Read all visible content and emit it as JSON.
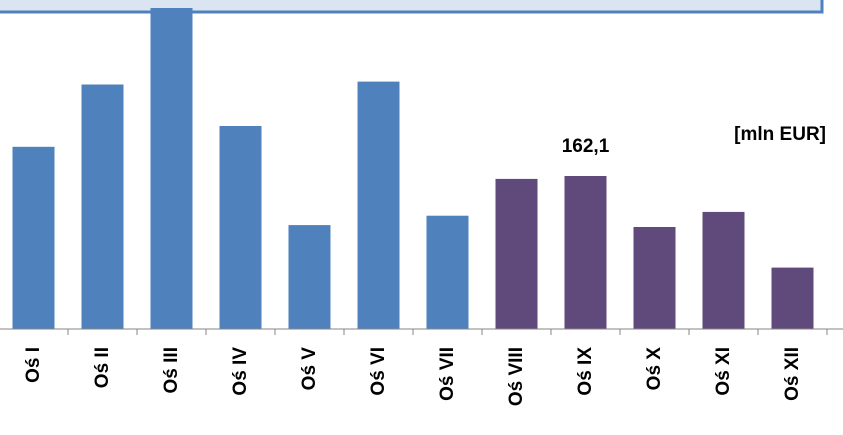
{
  "chart_data": {
    "type": "bar",
    "unit_label": "[mln EUR]",
    "categories": [
      "Oś I",
      "Oś II",
      "Oś III",
      "Oś IV",
      "Oś V",
      "Oś VI",
      "Oś VII",
      "Oś VIII",
      "Oś IX",
      "Oś X",
      "Oś XI",
      "Oś XII"
    ],
    "values": [
      193,
      259,
      340,
      215,
      110,
      262,
      120,
      159,
      162.1,
      108,
      124,
      65
    ],
    "data_labels": [
      {
        "category": "Oś IX",
        "text": "162,1"
      }
    ],
    "colors": [
      "#4f81bd",
      "#4f81bd",
      "#4f81bd",
      "#4f81bd",
      "#4f81bd",
      "#4f81bd",
      "#4f81bd",
      "#604a7b",
      "#604a7b",
      "#604a7b",
      "#604a7b",
      "#604a7b"
    ],
    "ylim": [
      0,
      340
    ],
    "grid": false,
    "legend": "none",
    "xlabel": "",
    "ylabel": ""
  },
  "colors": {
    "series_blue": "#4f81bd",
    "series_purple": "#604a7b",
    "header_fill": "#dbe5f1",
    "header_border": "#4f81bd"
  }
}
